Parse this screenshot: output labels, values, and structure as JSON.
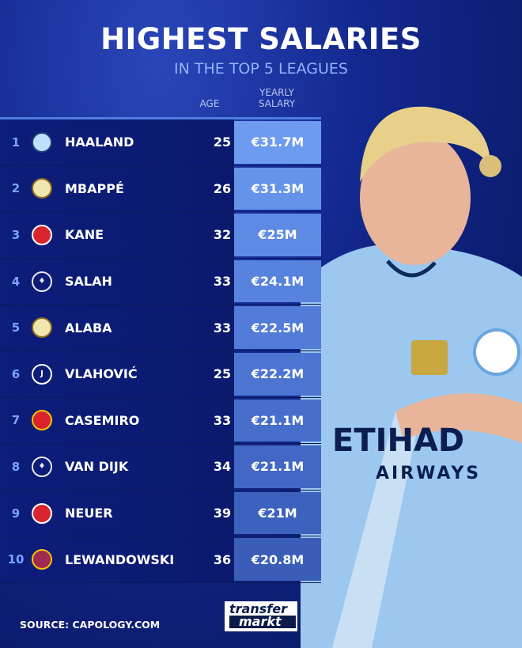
{
  "title": "HIGHEST SALARIES",
  "subtitle": "IN THE TOP 5 LEAGUES",
  "headers": {
    "age": "AGE",
    "salary_line1": "YEARLY",
    "salary_line2": "SALARY"
  },
  "rows": [
    {
      "rank": "1",
      "club_icon": "manchester-city-crest",
      "name": "HAALAND",
      "age": "25",
      "salary": "€31.7M"
    },
    {
      "rank": "2",
      "club_icon": "real-madrid-crest",
      "name": "MBAPPÉ",
      "age": "26",
      "salary": "€31.3M"
    },
    {
      "rank": "3",
      "club_icon": "bayern-munich-crest",
      "name": "KANE",
      "age": "32",
      "salary": "€25M"
    },
    {
      "rank": "4",
      "club_icon": "liverpool-crest",
      "name": "SALAH",
      "age": "33",
      "salary": "€24.1M"
    },
    {
      "rank": "5",
      "club_icon": "real-madrid-crest",
      "name": "ALABA",
      "age": "33",
      "salary": "€22.5M"
    },
    {
      "rank": "6",
      "club_icon": "juventus-crest",
      "name": "VLAHOVIĆ",
      "age": "25",
      "salary": "€22.2M"
    },
    {
      "rank": "7",
      "club_icon": "manchester-united-crest",
      "name": "CASEMIRO",
      "age": "33",
      "salary": "€21.1M"
    },
    {
      "rank": "8",
      "club_icon": "liverpool-crest",
      "name": "VAN DIJK",
      "age": "34",
      "salary": "€21.1M"
    },
    {
      "rank": "9",
      "club_icon": "bayern-munich-crest",
      "name": "NEUER",
      "age": "39",
      "salary": "€21M"
    },
    {
      "rank": "10",
      "club_icon": "barcelona-crest",
      "name": "LEWANDOWSKI",
      "age": "36",
      "salary": "€20.8M"
    }
  ],
  "source": "SOURCE: CAPOLOGY.COM",
  "logo": {
    "line1": "transfer",
    "line2": "markt"
  },
  "jersey": {
    "sponsor1": "ETIHAD",
    "sponsor2": "AIRWAYS"
  },
  "colors": {
    "accent": "#79a3ff",
    "salary_cell": "#5f8de6",
    "background": "#0b1a6e"
  }
}
